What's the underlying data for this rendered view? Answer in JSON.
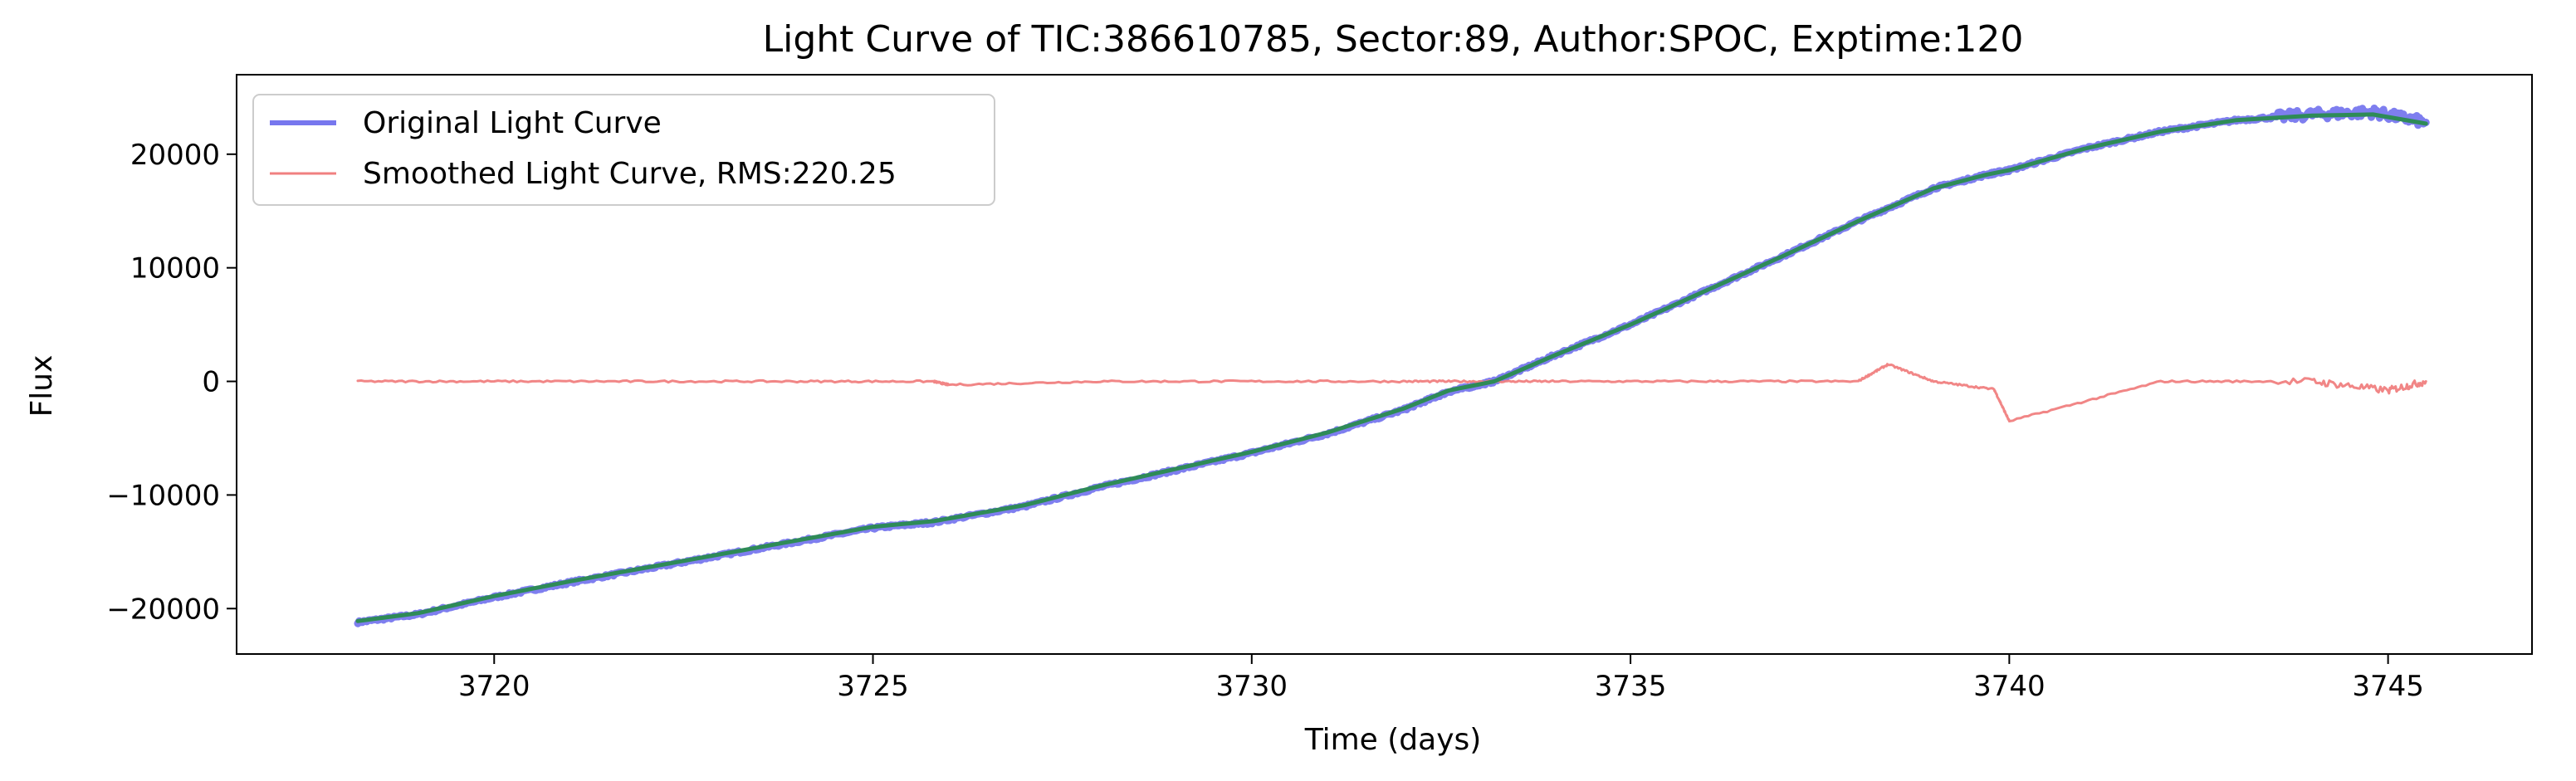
{
  "chart_data": {
    "type": "line",
    "title": "Light Curve of TIC:386610785, Sector:89, Author:SPOC, Exptime:120",
    "xlabel": "Time (days)",
    "ylabel": "Flux",
    "xlim": [
      3716.6,
      3746.9
    ],
    "ylim": [
      -24000,
      27000
    ],
    "x_ticks": [
      3720,
      3725,
      3730,
      3735,
      3740,
      3745
    ],
    "y_ticks": [
      -20000,
      -10000,
      0,
      10000,
      20000
    ],
    "x_tick_labels": [
      "3720",
      "3725",
      "3730",
      "3735",
      "3740",
      "3745"
    ],
    "y_tick_labels": [
      "−20000",
      "−10000",
      "0",
      "10000",
      "20000"
    ],
    "grid": false,
    "legend_position": "top-left",
    "series": [
      {
        "name": "Original Light Curve",
        "color": "#7777ee",
        "x": [
          3718.2,
          3719,
          3720,
          3721,
          3722,
          3723,
          3724,
          3725,
          3725.8,
          3727,
          3728,
          3729,
          3730,
          3731,
          3732,
          3732.6,
          3733.2,
          3734,
          3735,
          3736,
          3737,
          3738,
          3739,
          3739.7,
          3740,
          3741,
          3742,
          3743,
          3744,
          3744.8,
          3745.5
        ],
        "y": [
          -21200,
          -20500,
          -19000,
          -17700,
          -16500,
          -15300,
          -14100,
          -12900,
          -12400,
          -11000,
          -9300,
          -7800,
          -6300,
          -4600,
          -2500,
          -900,
          0,
          2300,
          5000,
          8000,
          11000,
          14100,
          17000,
          18200,
          18600,
          20500,
          22000,
          23000,
          23500,
          23700,
          22800
        ]
      },
      {
        "name": "Smoothed Light Curve, RMS:220.25",
        "color": "#f08080",
        "x": [
          3718.2,
          3720,
          3722,
          3724,
          3725.8,
          3726,
          3728,
          3730,
          3732,
          3733,
          3734,
          3736,
          3738,
          3738.4,
          3739,
          3739.8,
          3740,
          3742,
          3744,
          3745,
          3745.5
        ],
        "y": [
          0,
          0,
          0,
          0,
          0,
          -300,
          0,
          0,
          0,
          0,
          0,
          0,
          0,
          1500,
          0,
          -700,
          -3500,
          0,
          0,
          -800,
          0
        ]
      },
      {
        "color": "#2e8b57",
        "x": [
          3718.2,
          3719,
          3720,
          3721,
          3722,
          3723,
          3724,
          3725,
          3725.8,
          3727,
          3728,
          3729,
          3730,
          3731,
          3732,
          3732.6,
          3733.2,
          3734,
          3735,
          3736,
          3737,
          3738,
          3739,
          3739.7,
          3740,
          3741,
          3742,
          3743,
          3744,
          3744.8,
          3745.5
        ],
        "y": [
          -21100,
          -20400,
          -18900,
          -17600,
          -16400,
          -15200,
          -14000,
          -12800,
          -12300,
          -10900,
          -9200,
          -7700,
          -6200,
          -4500,
          -2400,
          -800,
          0,
          2300,
          5000,
          8000,
          11000,
          14100,
          17000,
          18200,
          18600,
          20500,
          22000,
          23000,
          23400,
          23500,
          22700
        ]
      }
    ]
  }
}
